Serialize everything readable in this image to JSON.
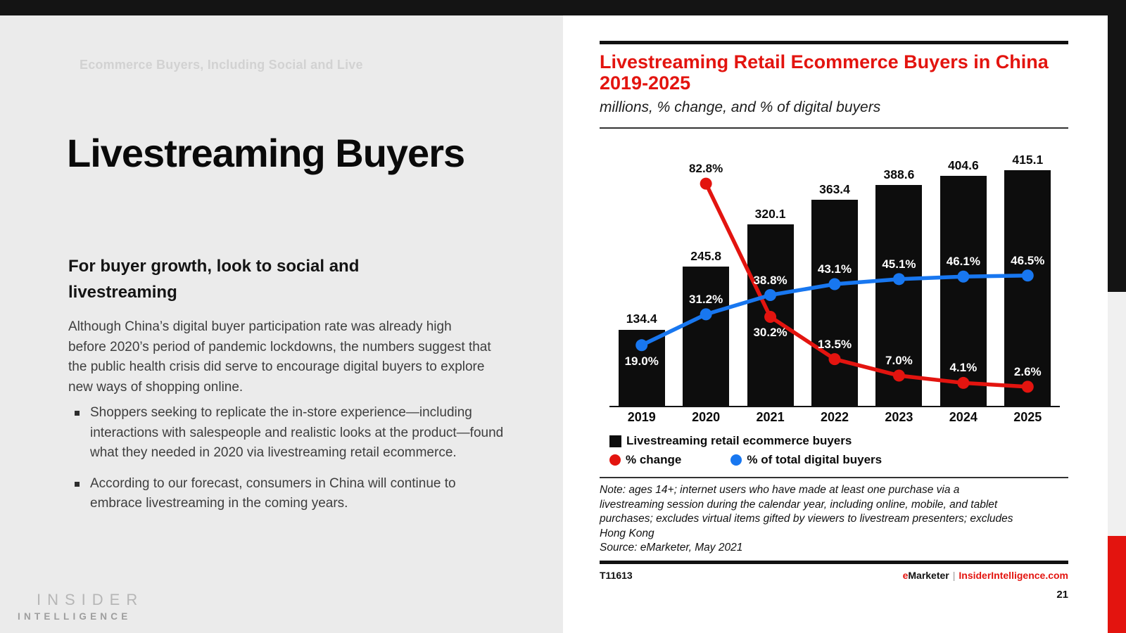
{
  "slide": {
    "kicker": "Ecommerce Buyers, Including Social and Live",
    "title": "Livestreaming Buyers",
    "subtitle": "For buyer growth, look to social and livestreaming",
    "paragraph": "Although China’s digital buyer participation rate was already high before 2020’s period of pandemic lockdowns, the numbers suggest that the public health crisis did serve to encourage digital buyers to explore new ways of shopping online.",
    "bullets": [
      "Shoppers seeking to replicate the in-store experience—including interactions with salespeople and realistic looks at the product—found what they needed in 2020 via livestreaming retail ecommerce.",
      "According to our forecast, consumers in China will continue to embrace livestreaming in the coming years."
    ],
    "logo": {
      "line1": "INSIDER",
      "line2": "INTELLIGENCE"
    },
    "page_number": "21"
  },
  "chart": {
    "title_line1": "Livestreaming Retail Ecommerce Buyers in China",
    "title_line2": "2019-2025",
    "subtitle": "millions, % change, and % of digital buyers",
    "note": "Note: ages 14+; internet users who have made at least one purchase via a livestreaming session during the calendar year, including online, mobile, and tablet purchases; excludes virtual items gifted by viewers to livestream presenters; excludes Hong Kong",
    "source": "Source: eMarketer, May 2021",
    "footer_id": "T11613",
    "brand_e": "e",
    "brand_marketer": "Marketer",
    "brand_sep": "|",
    "brand_site": "InsiderIntelligence.com",
    "accent_red": "#e3140f",
    "accent_blue": "#1877f0",
    "bar_black": "#0d0d0d"
  },
  "chart_data": {
    "type": "bar",
    "title": "Livestreaming Retail Ecommerce Buyers in China 2019-2025",
    "subtitle": "millions, % change, and % of digital buyers",
    "categories": [
      "2019",
      "2020",
      "2021",
      "2022",
      "2023",
      "2024",
      "2025"
    ],
    "series": [
      {
        "name": "Livestreaming retail ecommerce buyers",
        "type": "bar",
        "unit": "millions",
        "color": "#0d0d0d",
        "values": [
          134.4,
          245.8,
          320.1,
          363.4,
          388.6,
          404.6,
          415.1
        ]
      },
      {
        "name": "% change",
        "type": "line",
        "unit": "%",
        "color": "#e3140f",
        "values": [
          null,
          82.8,
          30.2,
          13.5,
          7.0,
          4.1,
          2.6
        ],
        "label_pos": [
          null,
          "above",
          "below",
          "above",
          "above",
          "above",
          "above"
        ],
        "label_colors": [
          null,
          "#0b0b0b",
          "#ffffff",
          "#ffffff",
          "#ffffff",
          "#ffffff",
          "#ffffff"
        ]
      },
      {
        "name": "% of total digital buyers",
        "type": "line",
        "unit": "%",
        "color": "#1877f0",
        "values": [
          19.0,
          31.2,
          38.8,
          43.1,
          45.1,
          46.1,
          46.5
        ],
        "label_pos": [
          "below",
          "above",
          "above",
          "above",
          "above",
          "above",
          "above"
        ],
        "label_colors": [
          "#ffffff",
          "#ffffff",
          "#ffffff",
          "#ffffff",
          "#ffffff",
          "#ffffff",
          "#ffffff"
        ]
      }
    ],
    "ylim": [
      0,
      462
    ],
    "y2lim": [
      -5.5,
      98.1
    ],
    "grid": false,
    "legend_position": "bottom-left",
    "xlabel": "",
    "ylabel": ""
  }
}
